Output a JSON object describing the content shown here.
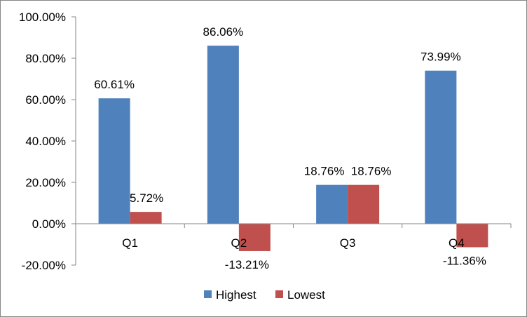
{
  "chart_data": {
    "type": "bar",
    "categories": [
      "Q1",
      "Q2",
      "Q3",
      "Q4"
    ],
    "series": [
      {
        "name": "Highest",
        "values": [
          60.61,
          86.06,
          18.76,
          73.99
        ],
        "color": "#4F81BD",
        "labels": [
          "60.61%",
          "86.06%",
          "18.76%",
          "73.99%"
        ]
      },
      {
        "name": "Lowest",
        "values": [
          5.72,
          -13.21,
          18.76,
          -11.36
        ],
        "color": "#C0504D",
        "labels": [
          "5.72%",
          "-13.21%",
          "18.76%",
          "-11.36%"
        ]
      }
    ],
    "ylim": [
      -20,
      100
    ],
    "yticks": [
      100,
      80,
      60,
      40,
      20,
      0,
      -20
    ],
    "ytick_labels": [
      "100.00%",
      "80.00%",
      "60.00%",
      "40.00%",
      "20.00%",
      "0.00%",
      "-20.00%"
    ],
    "grid": false,
    "legend": {
      "position": "bottom",
      "entries": [
        "Highest",
        "Lowest"
      ]
    },
    "axis_color": "#868686"
  }
}
